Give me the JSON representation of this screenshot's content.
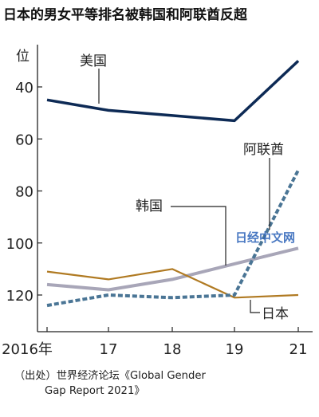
{
  "chart_data": {
    "type": "line",
    "title": "日本的男女平等排名被韩国和阿联酋反超",
    "ylabel": "位",
    "y_reversed": true,
    "ylim": [
      131,
      20
    ],
    "y_ticks": [
      40,
      60,
      80,
      100,
      120
    ],
    "x": [
      2016,
      2017,
      2018,
      2019,
      2021
    ],
    "x_tick_labels": [
      "2016年",
      "17",
      "18",
      "19",
      "21"
    ],
    "grid": false,
    "series": [
      {
        "name": "美国",
        "color": "#0d2a55",
        "style": "solid",
        "values": [
          45,
          49,
          51,
          53,
          30
        ]
      },
      {
        "name": "阿联酋",
        "color": "#4a7595",
        "style": "dotted",
        "values": [
          124,
          120,
          121,
          120,
          72
        ]
      },
      {
        "name": "韩国",
        "color": "#a8a6b8",
        "style": "solid",
        "values": [
          116,
          118,
          114,
          108,
          102
        ]
      },
      {
        "name": "日本",
        "color": "#b07a22",
        "style": "solid",
        "values": [
          111,
          114,
          110,
          121,
          120
        ]
      }
    ],
    "source": [
      "（出处）世界经济论坛《Global Gender",
      "Gap Report 2021》"
    ]
  },
  "watermark": {
    "text": "日经中文网",
    "color": "#2b62b8"
  }
}
